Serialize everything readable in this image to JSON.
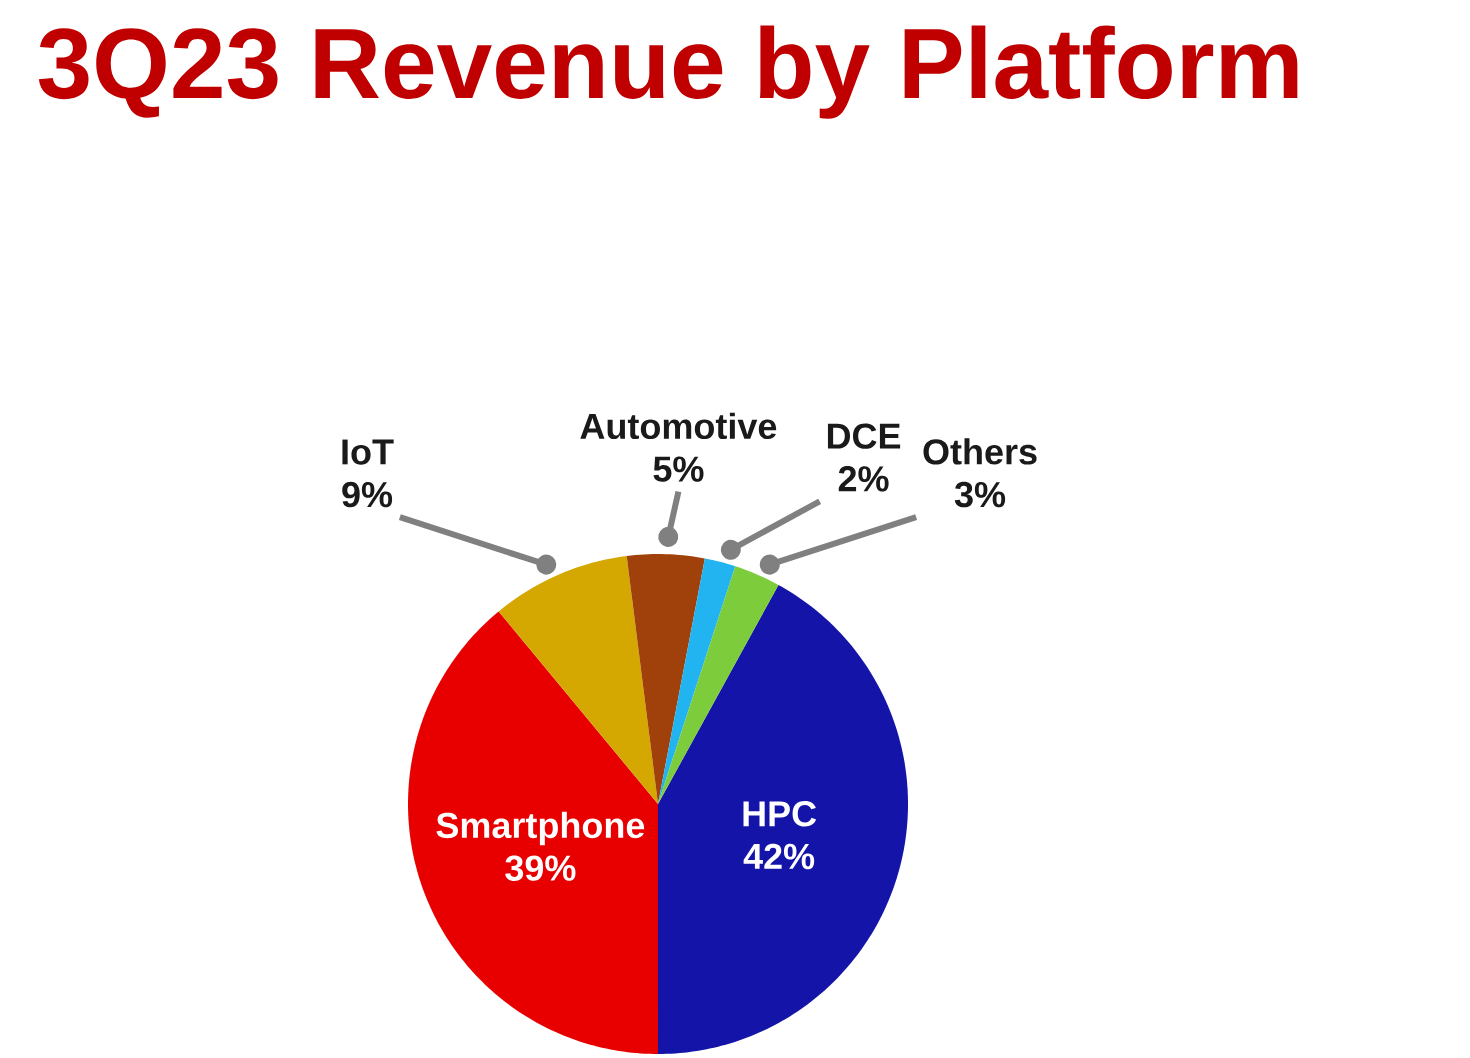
{
  "chart_data": {
    "type": "pie",
    "title": "3Q23 Revenue by Platform",
    "categories": [
      "HPC",
      "Smartphone",
      "IoT",
      "Automotive",
      "DCE",
      "Others"
    ],
    "values": [
      42,
      39,
      9,
      5,
      2,
      3
    ],
    "colors": [
      "#1414a8",
      "#e80000",
      "#d4a800",
      "#a0400a",
      "#22b4f0",
      "#7ccc3c"
    ],
    "value_labels": [
      "42%",
      "39%",
      "9%",
      "5%",
      "2%",
      "3%"
    ]
  }
}
